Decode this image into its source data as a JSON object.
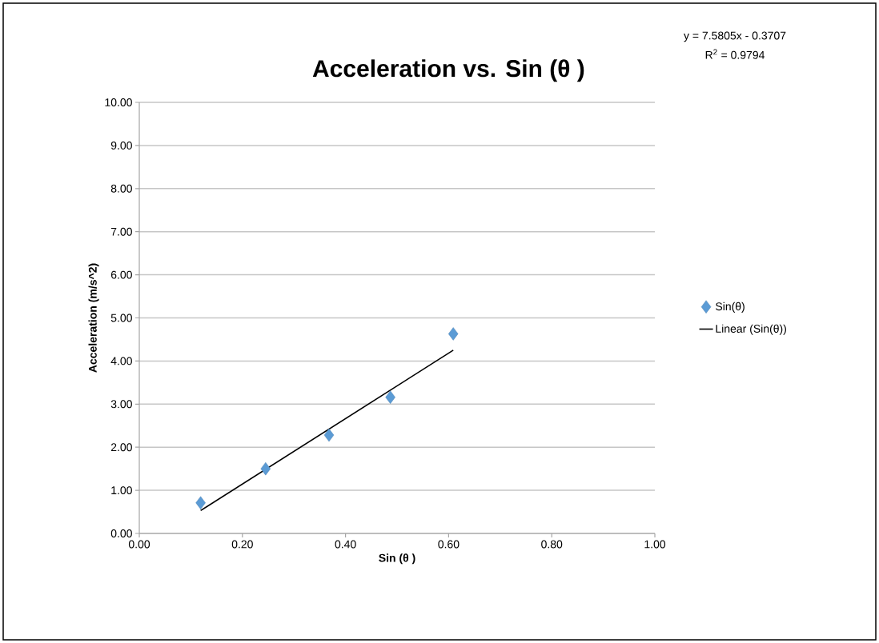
{
  "chart_data": {
    "type": "scatter",
    "title": "Acceleration vs. Sin (θ )",
    "xlabel": "Sin (θ )",
    "ylabel": "Acceleration (m/s^2)",
    "annotations": [
      "y = 7.5805x - 0.3707",
      "R$^{2}$ = 0.9794"
    ],
    "series": [
      {
        "name": "Sin(θ)",
        "color": "#5b9bd5",
        "marker": "diamond",
        "x": [
          0.119,
          0.245,
          0.368,
          0.487,
          0.609
        ],
        "values": [
          0.71,
          1.5,
          2.28,
          3.16,
          4.63
        ]
      },
      {
        "name": "Linear (Sin(θ))",
        "type": "line",
        "color": "#000000",
        "marker": "none",
        "line_style": "solid",
        "x": [
          0.119,
          0.609
        ],
        "values": [
          0.53,
          4.25
        ]
      }
    ],
    "xlim": [
      0,
      1
    ],
    "ylim": [
      0,
      10
    ],
    "xticks": [
      {
        "value": 0,
        "label": "0.00"
      },
      {
        "value": 0.2,
        "label": "0.20"
      },
      {
        "value": 0.4,
        "label": "0.40"
      },
      {
        "value": 0.6,
        "label": "0.60"
      },
      {
        "value": 0.8,
        "label": "0.80"
      },
      {
        "value": 1,
        "label": "1.00"
      }
    ],
    "yticks": [
      {
        "value": 0,
        "label": "0.00"
      },
      {
        "value": 1,
        "label": "1.00"
      },
      {
        "value": 2,
        "label": "2.00"
      },
      {
        "value": 3,
        "label": "3.00"
      },
      {
        "value": 4,
        "label": "4.00"
      },
      {
        "value": 5,
        "label": "5.00"
      },
      {
        "value": 6,
        "label": "6.00"
      },
      {
        "value": 7,
        "label": "7.00"
      },
      {
        "value": 8,
        "label": "8.00"
      },
      {
        "value": 9,
        "label": "9.00"
      },
      {
        "value": 10,
        "label": "10.00"
      }
    ],
    "grid": "y",
    "legend": "right"
  }
}
